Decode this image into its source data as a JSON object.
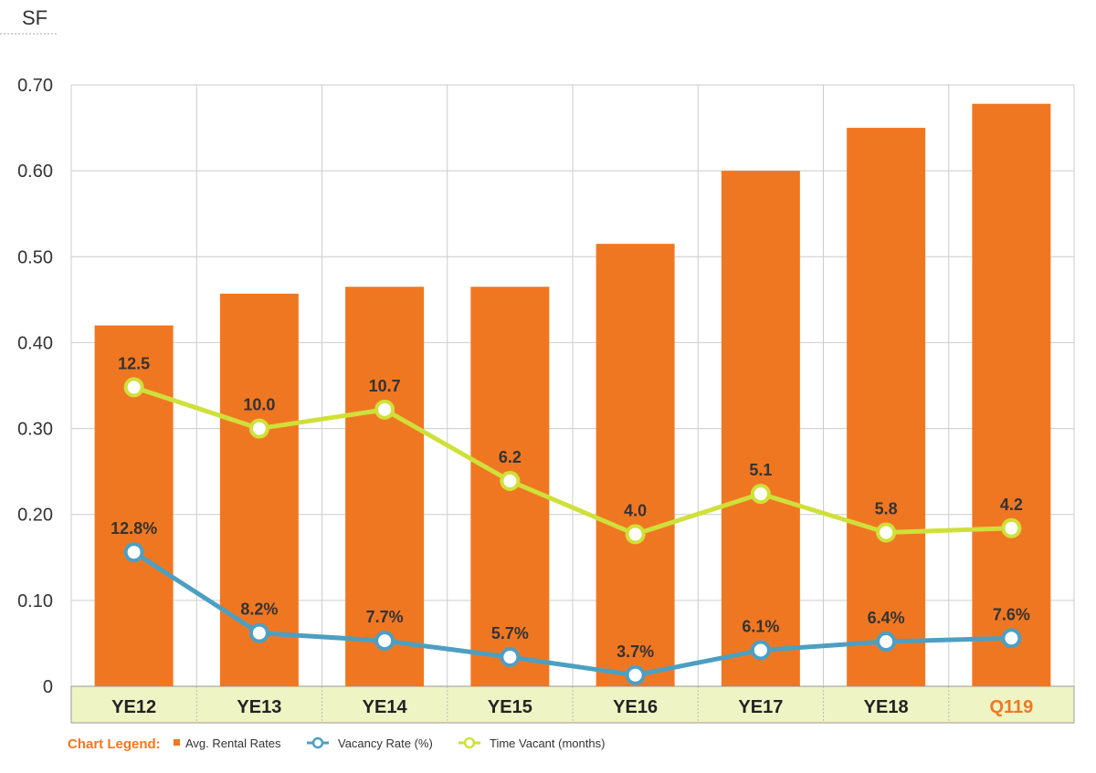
{
  "chart_data": {
    "type": "bar",
    "unit_label": "SF",
    "categories": [
      "YE12",
      "YE13",
      "YE14",
      "YE15",
      "YE16",
      "YE17",
      "YE18",
      "Q119"
    ],
    "highlight_category": "Q119",
    "ylim": [
      0,
      0.7
    ],
    "yticks": [
      "0",
      "0.10",
      "0.20",
      "0.30",
      "0.40",
      "0.50",
      "0.60",
      "0.70"
    ],
    "ytick_values": [
      0,
      0.1,
      0.2,
      0.3,
      0.4,
      0.5,
      0.6,
      0.7
    ],
    "grid": true,
    "series": [
      {
        "name": "Avg. Rental Rates",
        "kind": "bar",
        "color": "#f07722",
        "values": [
          0.42,
          0.457,
          0.465,
          0.465,
          0.515,
          0.6,
          0.65,
          0.678
        ]
      },
      {
        "name": "Vacancy Rate (%)",
        "kind": "line",
        "color": "#4d9fc2",
        "values": [
          12.8,
          8.2,
          7.7,
          5.7,
          3.7,
          6.1,
          6.4,
          7.6
        ],
        "labels": [
          "12.8%",
          "8.2%",
          "7.7%",
          "5.7%",
          "3.7%",
          "6.1%",
          "6.4%",
          "7.6%"
        ],
        "plot_y": [
          0.156,
          0.062,
          0.053,
          0.034,
          0.013,
          0.042,
          0.052,
          0.056
        ]
      },
      {
        "name": "Time Vacant (months)",
        "kind": "line",
        "color": "#cfe03a",
        "values": [
          12.5,
          10.0,
          10.7,
          6.2,
          4.0,
          5.1,
          5.8,
          4.2
        ],
        "labels": [
          "12.5",
          "10.0",
          "10.7",
          "6.2",
          "4.0",
          "5.1",
          "5.8",
          "4.2"
        ],
        "plot_y": [
          0.348,
          0.3,
          0.322,
          0.239,
          0.177,
          0.224,
          0.179,
          0.184
        ]
      }
    ],
    "legend": {
      "title": "Chart Legend:",
      "placement": "bottom-left"
    },
    "colors": {
      "axis_band": "#eef4c4",
      "legend_title": "#f07722",
      "highlight_label": "#f07722"
    }
  }
}
